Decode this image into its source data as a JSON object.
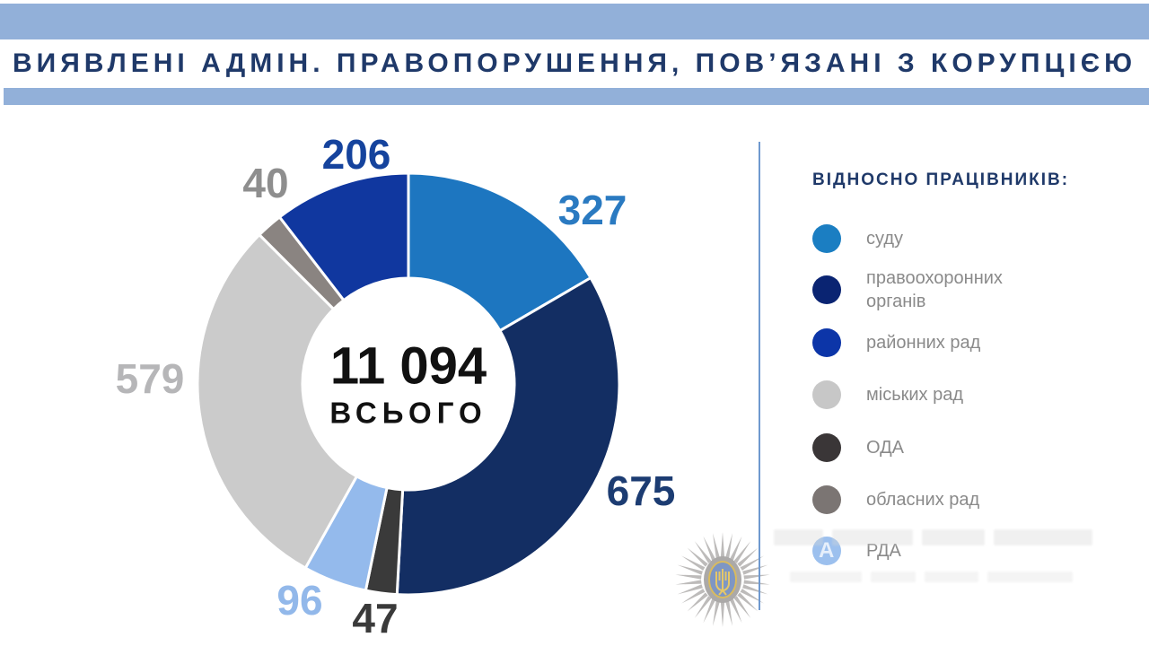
{
  "header": {
    "title": "ВИЯВЛЕНІ АДМІН. ПРАВОПОРУШЕННЯ, ПОВ’ЯЗАНІ З КОРУПЦІЄЮ"
  },
  "theme": {
    "band_color": "#92b0d9",
    "title_color": "#1f3969",
    "divider_color": "#6f99cf",
    "legend_title_color": "#1f3969",
    "legend_text_color": "#8a8a8a",
    "center_text_color": "#111111"
  },
  "chart_data": {
    "type": "pie",
    "variant": "donut",
    "title": "ВИЯВЛЕНІ АДМІН. ПРАВОПОРУШЕННЯ, ПОВ’ЯЗАНІ З КОРУПЦІЄЮ",
    "center": {
      "total_text": "11 094",
      "total_label": "ВСЬОГО"
    },
    "legend_title": "ВІДНОСНО ПРАЦІВНИКІВ:",
    "legend_position": "right",
    "start_angle_deg": 0,
    "clockwise": true,
    "segments": [
      {
        "label": "суду",
        "value": 327,
        "color": "#1d76c0",
        "dot_color": "#1b7ec2",
        "label_color": "#2a7ac1"
      },
      {
        "label": "правоохоронних органів",
        "value": 675,
        "color": "#132e63",
        "dot_color": "#0a2472",
        "label_color": "#1c3c72"
      },
      {
        "label": "районних рад",
        "value": 206,
        "color": "#10379f",
        "dot_color": "#0c35a8",
        "label_color": "#15439d"
      },
      {
        "label": "міських рад",
        "value": 579,
        "color": "#cbcbcb",
        "dot_color": "#c7c7c7",
        "label_color": "#b6b6b8"
      },
      {
        "label": "ОДА",
        "value": 47,
        "color": "#3a3a3a",
        "dot_color": "#3a3637",
        "label_color": "#3a3a3a"
      },
      {
        "label": "обласних рад",
        "value": 40,
        "color": "#8a8481",
        "dot_color": "#7b7573",
        "label_color": "#8e8e8e"
      },
      {
        "label": "РДА",
        "value": 96,
        "color": "#94baec",
        "dot_color": "#9cc0ee",
        "label_color": "#92b8ea"
      }
    ],
    "draw_order": [
      0,
      1,
      4,
      6,
      3,
      5,
      2
    ]
  },
  "watermark": {
    "overlap_letter": "A"
  }
}
